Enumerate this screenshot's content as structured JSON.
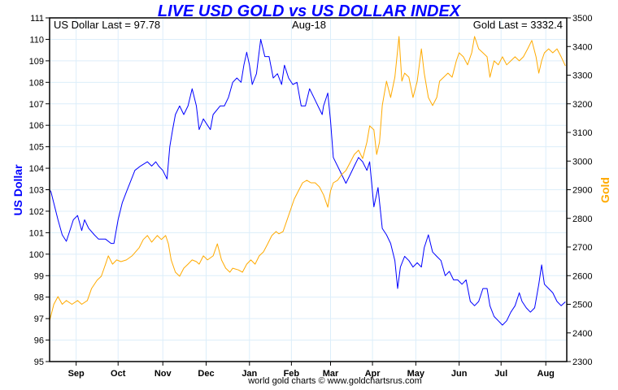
{
  "chart_data": {
    "type": "line",
    "title": "LIVE USD GOLD vs US DOLLAR INDEX",
    "annotations": {
      "left": "US Dollar Last = 97.78",
      "center": "Aug-18",
      "right": "Gold Last = 3332.4"
    },
    "ylabel_left": "US Dollar",
    "ylabel_right": "Gold",
    "footer": "world gold charts © www.goldchartsrus.com",
    "xlim": [
      0,
      370
    ],
    "x_unit": "days",
    "x_ticks": [
      {
        "label": "Sep",
        "x": 19
      },
      {
        "label": "Oct",
        "x": 49
      },
      {
        "label": "Nov",
        "x": 81
      },
      {
        "label": "Dec",
        "x": 112
      },
      {
        "label": "Jan",
        "x": 143
      },
      {
        "label": "Feb",
        "x": 173
      },
      {
        "label": "Mar",
        "x": 201
      },
      {
        "label": "Apr",
        "x": 231
      },
      {
        "label": "May",
        "x": 262
      },
      {
        "label": "Jun",
        "x": 293
      },
      {
        "label": "Jul",
        "x": 323
      },
      {
        "label": "Aug",
        "x": 355
      }
    ],
    "ylim_left": [
      95,
      111
    ],
    "yticks_left": [
      95,
      96,
      97,
      98,
      99,
      100,
      101,
      102,
      103,
      104,
      105,
      106,
      107,
      108,
      109,
      110,
      111
    ],
    "ylim_right": [
      2300,
      3500
    ],
    "yticks_right": [
      2300,
      2400,
      2500,
      2600,
      2700,
      2800,
      2900,
      3000,
      3100,
      3200,
      3300,
      3400,
      3500
    ],
    "grid": true,
    "series": [
      {
        "name": "US Dollar",
        "axis": "left",
        "color": "#0000ff",
        "points": [
          [
            0,
            103.0
          ],
          [
            1,
            102.9
          ],
          [
            6,
            101.6
          ],
          [
            9,
            100.9
          ],
          [
            12,
            100.6
          ],
          [
            15,
            101.2
          ],
          [
            17,
            101.6
          ],
          [
            20,
            101.8
          ],
          [
            23,
            101.1
          ],
          [
            25,
            101.6
          ],
          [
            28,
            101.2
          ],
          [
            32,
            100.9
          ],
          [
            35,
            100.7
          ],
          [
            40,
            100.7
          ],
          [
            44,
            100.5
          ],
          [
            46,
            100.5
          ],
          [
            49,
            101.6
          ],
          [
            52,
            102.4
          ],
          [
            55,
            102.9
          ],
          [
            58,
            103.4
          ],
          [
            61,
            103.9
          ],
          [
            65,
            104.1
          ],
          [
            70,
            104.3
          ],
          [
            73,
            104.1
          ],
          [
            76,
            104.3
          ],
          [
            78,
            104.1
          ],
          [
            81,
            103.9
          ],
          [
            84,
            103.5
          ],
          [
            86,
            105.0
          ],
          [
            88,
            105.8
          ],
          [
            90,
            106.5
          ],
          [
            93,
            106.9
          ],
          [
            96,
            106.5
          ],
          [
            99,
            106.9
          ],
          [
            102,
            107.7
          ],
          [
            105,
            106.9
          ],
          [
            107,
            105.8
          ],
          [
            110,
            106.3
          ],
          [
            113,
            106.0
          ],
          [
            115,
            105.8
          ],
          [
            117,
            106.5
          ],
          [
            122,
            106.9
          ],
          [
            125,
            106.9
          ],
          [
            128,
            107.3
          ],
          [
            131,
            108.0
          ],
          [
            134,
            108.2
          ],
          [
            137,
            108.0
          ],
          [
            139,
            108.8
          ],
          [
            141,
            109.4
          ],
          [
            143,
            108.8
          ],
          [
            145,
            107.9
          ],
          [
            148,
            108.4
          ],
          [
            151,
            110.0
          ],
          [
            154,
            109.2
          ],
          [
            157,
            109.2
          ],
          [
            160,
            108.2
          ],
          [
            163,
            108.4
          ],
          [
            166,
            107.9
          ],
          [
            168,
            108.8
          ],
          [
            171,
            108.2
          ],
          [
            174,
            107.9
          ],
          [
            177,
            108.0
          ],
          [
            180,
            106.9
          ],
          [
            183,
            106.9
          ],
          [
            186,
            107.7
          ],
          [
            189,
            107.3
          ],
          [
            192,
            106.9
          ],
          [
            195,
            106.5
          ],
          [
            196,
            106.9
          ],
          [
            199,
            107.5
          ],
          [
            201,
            106.2
          ],
          [
            203,
            104.5
          ],
          [
            206,
            104.1
          ],
          [
            209,
            103.7
          ],
          [
            212,
            103.3
          ],
          [
            215,
            103.7
          ],
          [
            218,
            104.1
          ],
          [
            221,
            104.5
          ],
          [
            224,
            104.3
          ],
          [
            227,
            103.9
          ],
          [
            229,
            104.3
          ],
          [
            232,
            102.2
          ],
          [
            235,
            103.1
          ],
          [
            238,
            101.2
          ],
          [
            241,
            100.9
          ],
          [
            244,
            100.5
          ],
          [
            247,
            99.7
          ],
          [
            249,
            98.4
          ],
          [
            251,
            99.4
          ],
          [
            254,
            99.9
          ],
          [
            257,
            99.7
          ],
          [
            260,
            99.4
          ],
          [
            263,
            99.6
          ],
          [
            266,
            99.4
          ],
          [
            268,
            100.3
          ],
          [
            271,
            100.9
          ],
          [
            274,
            100.1
          ],
          [
            277,
            99.9
          ],
          [
            280,
            99.7
          ],
          [
            283,
            99.0
          ],
          [
            286,
            99.2
          ],
          [
            289,
            98.8
          ],
          [
            292,
            98.8
          ],
          [
            295,
            98.6
          ],
          [
            298,
            98.8
          ],
          [
            301,
            97.8
          ],
          [
            304,
            97.6
          ],
          [
            307,
            97.8
          ],
          [
            310,
            98.4
          ],
          [
            313,
            98.4
          ],
          [
            315,
            97.6
          ],
          [
            318,
            97.1
          ],
          [
            321,
            96.9
          ],
          [
            324,
            96.7
          ],
          [
            327,
            96.9
          ],
          [
            330,
            97.3
          ],
          [
            333,
            97.6
          ],
          [
            336,
            98.2
          ],
          [
            338,
            97.8
          ],
          [
            341,
            97.5
          ],
          [
            344,
            97.3
          ],
          [
            347,
            97.5
          ],
          [
            350,
            98.6
          ],
          [
            352,
            99.5
          ],
          [
            354,
            98.6
          ],
          [
            357,
            98.4
          ],
          [
            360,
            98.2
          ],
          [
            363,
            97.8
          ],
          [
            366,
            97.6
          ],
          [
            369,
            97.78
          ]
        ]
      },
      {
        "name": "Gold",
        "axis": "right",
        "color": "#ffaa00",
        "points": [
          [
            0,
            2442
          ],
          [
            3,
            2500
          ],
          [
            6,
            2527
          ],
          [
            9,
            2500
          ],
          [
            12,
            2513
          ],
          [
            16,
            2500
          ],
          [
            20,
            2513
          ],
          [
            23,
            2500
          ],
          [
            27,
            2513
          ],
          [
            30,
            2555
          ],
          [
            34,
            2584
          ],
          [
            37,
            2598
          ],
          [
            40,
            2640
          ],
          [
            42,
            2669
          ],
          [
            45,
            2640
          ],
          [
            48,
            2655
          ],
          [
            51,
            2649
          ],
          [
            55,
            2655
          ],
          [
            59,
            2669
          ],
          [
            64,
            2697
          ],
          [
            67,
            2726
          ],
          [
            70,
            2740
          ],
          [
            73,
            2717
          ],
          [
            77,
            2740
          ],
          [
            80,
            2726
          ],
          [
            83,
            2740
          ],
          [
            85,
            2711
          ],
          [
            87,
            2655
          ],
          [
            90,
            2612
          ],
          [
            93,
            2598
          ],
          [
            96,
            2626
          ],
          [
            99,
            2640
          ],
          [
            102,
            2655
          ],
          [
            105,
            2649
          ],
          [
            107,
            2640
          ],
          [
            110,
            2669
          ],
          [
            113,
            2655
          ],
          [
            117,
            2669
          ],
          [
            120,
            2711
          ],
          [
            123,
            2655
          ],
          [
            126,
            2626
          ],
          [
            129,
            2612
          ],
          [
            131,
            2626
          ],
          [
            135,
            2620
          ],
          [
            138,
            2612
          ],
          [
            141,
            2640
          ],
          [
            144,
            2655
          ],
          [
            147,
            2640
          ],
          [
            150,
            2669
          ],
          [
            153,
            2683
          ],
          [
            156,
            2711
          ],
          [
            159,
            2740
          ],
          [
            162,
            2754
          ],
          [
            164,
            2746
          ],
          [
            167,
            2754
          ],
          [
            170,
            2796
          ],
          [
            173,
            2839
          ],
          [
            175,
            2867
          ],
          [
            178,
            2896
          ],
          [
            181,
            2924
          ],
          [
            184,
            2933
          ],
          [
            187,
            2924
          ],
          [
            190,
            2924
          ],
          [
            193,
            2910
          ],
          [
            196,
            2882
          ],
          [
            199,
            2839
          ],
          [
            201,
            2896
          ],
          [
            203,
            2924
          ],
          [
            206,
            2933
          ],
          [
            209,
            2953
          ],
          [
            212,
            2967
          ],
          [
            215,
            2995
          ],
          [
            218,
            3023
          ],
          [
            221,
            3038
          ],
          [
            224,
            3009
          ],
          [
            227,
            3066
          ],
          [
            229,
            3123
          ],
          [
            232,
            3109
          ],
          [
            234,
            3023
          ],
          [
            236,
            3066
          ],
          [
            238,
            3194
          ],
          [
            241,
            3279
          ],
          [
            244,
            3222
          ],
          [
            247,
            3293
          ],
          [
            250,
            3435
          ],
          [
            252,
            3279
          ],
          [
            254,
            3307
          ],
          [
            257,
            3293
          ],
          [
            260,
            3222
          ],
          [
            263,
            3279
          ],
          [
            266,
            3392
          ],
          [
            268,
            3307
          ],
          [
            271,
            3222
          ],
          [
            274,
            3194
          ],
          [
            277,
            3222
          ],
          [
            279,
            3279
          ],
          [
            282,
            3293
          ],
          [
            285,
            3307
          ],
          [
            288,
            3293
          ],
          [
            291,
            3350
          ],
          [
            293,
            3378
          ],
          [
            296,
            3364
          ],
          [
            299,
            3336
          ],
          [
            302,
            3378
          ],
          [
            304,
            3435
          ],
          [
            307,
            3392
          ],
          [
            310,
            3378
          ],
          [
            313,
            3364
          ],
          [
            315,
            3293
          ],
          [
            318,
            3350
          ],
          [
            321,
            3336
          ],
          [
            324,
            3364
          ],
          [
            327,
            3336
          ],
          [
            330,
            3350
          ],
          [
            333,
            3364
          ],
          [
            336,
            3350
          ],
          [
            339,
            3364
          ],
          [
            342,
            3392
          ],
          [
            345,
            3421
          ],
          [
            348,
            3364
          ],
          [
            350,
            3307
          ],
          [
            352,
            3350
          ],
          [
            354,
            3378
          ],
          [
            357,
            3392
          ],
          [
            360,
            3378
          ],
          [
            363,
            3392
          ],
          [
            366,
            3364
          ],
          [
            369,
            3332.4
          ]
        ]
      }
    ]
  }
}
